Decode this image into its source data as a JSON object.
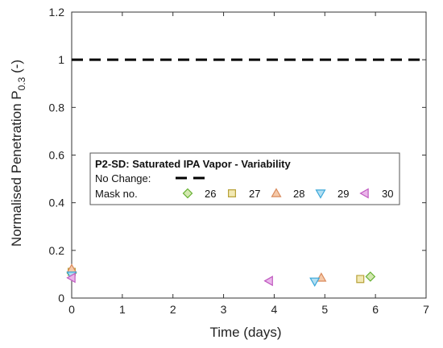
{
  "chart_data": {
    "type": "scatter",
    "xlabel": "Time (days)",
    "ylabel": {
      "main": "Normalised Penetration P",
      "sub": "0.3",
      "suffix": " (-)"
    },
    "xlim": [
      0,
      7
    ],
    "ylim": [
      0,
      1.2
    ],
    "x_ticks": [
      "0",
      "1",
      "2",
      "3",
      "4",
      "5",
      "6",
      "7"
    ],
    "y_ticks": [
      "0",
      "0.2",
      "0.4",
      "0.6",
      "0.8",
      "1",
      "1.2"
    ],
    "reference_line": {
      "name": "No Change:",
      "y": 1.0,
      "style": "dashed",
      "color": "#000000"
    },
    "legend": {
      "title": "P2-SD:  Saturated IPA Vapor - Variability",
      "line_label": "No Change:",
      "mask_label": "Mask no."
    },
    "series": [
      {
        "name": "26",
        "marker": "diamond",
        "color": "#66b032",
        "fill": "#d3e8b0",
        "points": [
          [
            0.0,
            0.105
          ],
          [
            5.9,
            0.09
          ]
        ]
      },
      {
        "name": "27",
        "marker": "square",
        "color": "#b8a23a",
        "fill": "#f2e9b4",
        "points": [
          [
            0.0,
            0.11
          ],
          [
            5.7,
            0.08
          ]
        ]
      },
      {
        "name": "28",
        "marker": "triangle-up",
        "color": "#d98a5c",
        "fill": "#f5c9a8",
        "points": [
          [
            0.0,
            0.122
          ],
          [
            4.93,
            0.085
          ]
        ]
      },
      {
        "name": "29",
        "marker": "triangle-down",
        "color": "#3aa7d9",
        "fill": "#b3dff2",
        "points": [
          [
            0.0,
            0.095
          ],
          [
            4.8,
            0.07
          ]
        ]
      },
      {
        "name": "30",
        "marker": "triangle-left",
        "color": "#c05ac0",
        "fill": "#eab6ea",
        "points": [
          [
            0.0,
            0.085
          ],
          [
            3.9,
            0.072
          ]
        ]
      }
    ]
  }
}
